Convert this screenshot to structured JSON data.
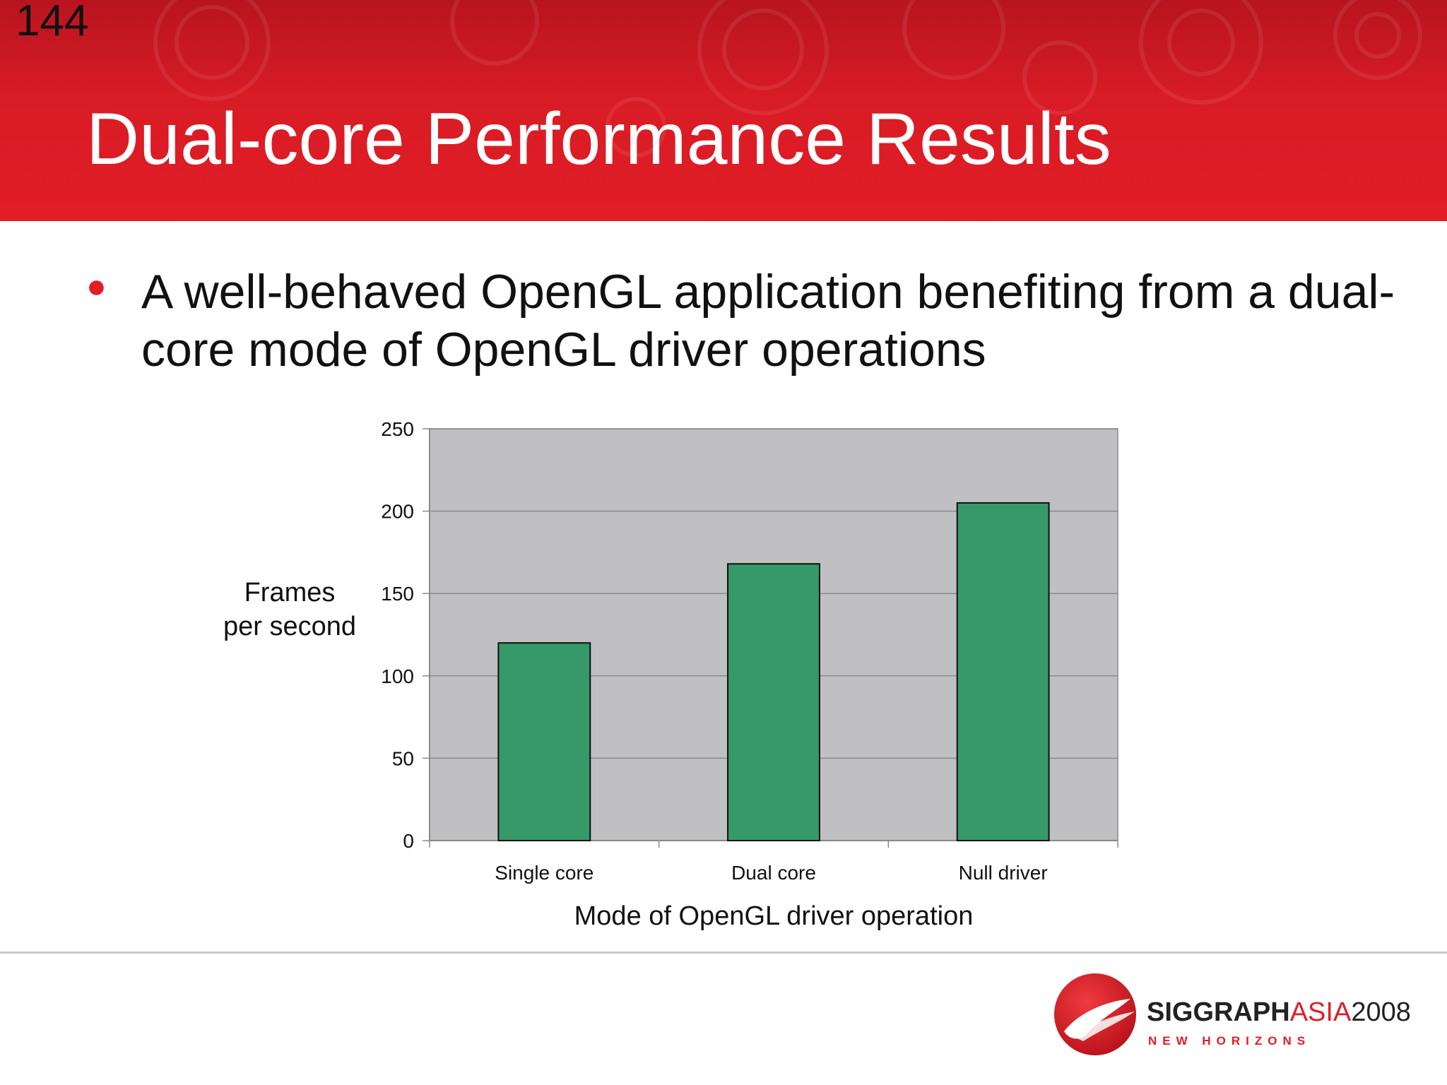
{
  "slide": {
    "number": "144",
    "title": "Dual-core Performance Results",
    "bullet": "A well-behaved OpenGL application benefiting from a dual-core mode of OpenGL driver operations"
  },
  "chart_data": {
    "type": "bar",
    "categories": [
      "Single core",
      "Dual core",
      "Null driver"
    ],
    "values": [
      120,
      168,
      205
    ],
    "xlabel": "Mode of OpenGL driver operation",
    "ylabel_line1": "Frames",
    "ylabel_line2": "per second",
    "ylim": [
      0,
      250
    ],
    "yticks": [
      0,
      50,
      100,
      150,
      200,
      250
    ],
    "grid": true,
    "legend": "none",
    "colors": {
      "bar": "#35996a",
      "plot_background": "#c0bfc2",
      "gridline": "#8a8a8a"
    }
  },
  "logo": {
    "brand_bold": "SIGGRAPH",
    "brand_accent": "ASIA",
    "brand_year": "2008",
    "tagline": "NEW HORIZONS"
  },
  "colors": {
    "header_red": "#e21d26",
    "bullet_red": "#e21d26"
  }
}
